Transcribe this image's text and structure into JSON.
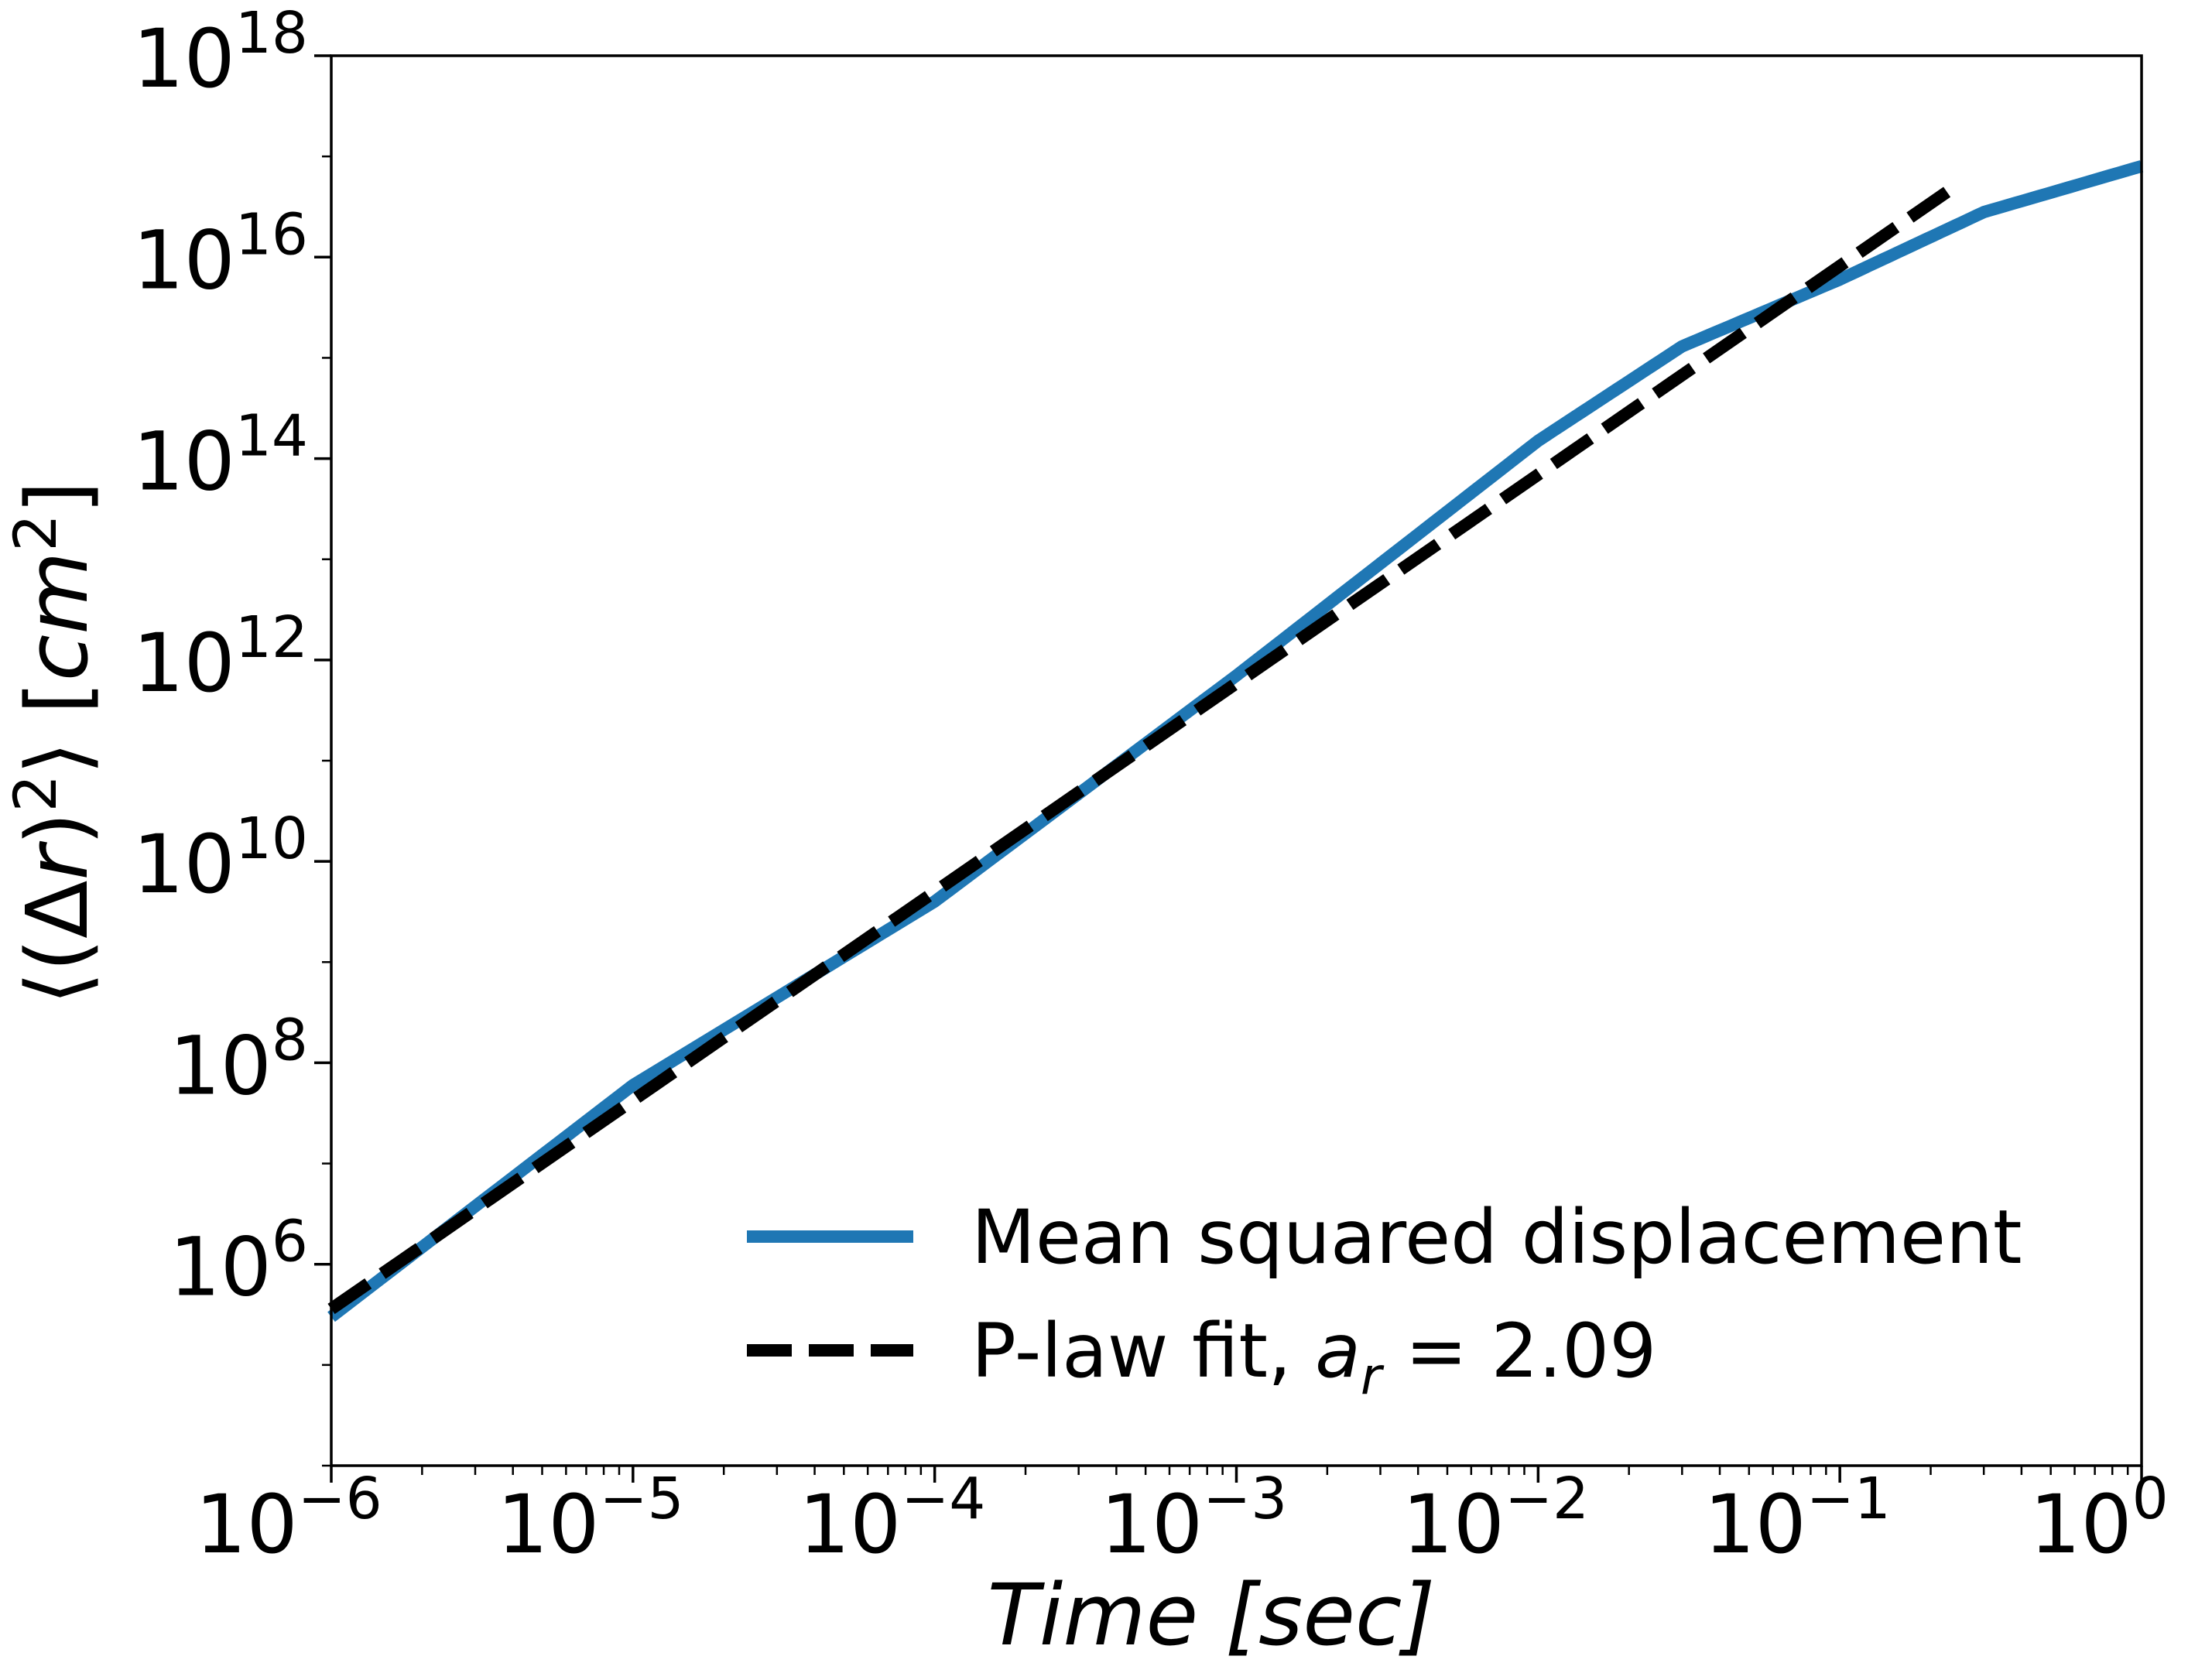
{
  "chart_data": {
    "type": "line",
    "xscale": "log",
    "yscale": "log",
    "xlabel": "Time [sec]",
    "ylabel": "⟨(Δr)²⟩ [cm²]",
    "xlim": [
      1e-06,
      1
    ],
    "ylim": [
      10000.0,
      1e+18
    ],
    "grid": false,
    "legend_position": "lower-right",
    "x_ticks": [
      {
        "value": 1e-06,
        "base": "10",
        "exp": "−6"
      },
      {
        "value": 1e-05,
        "base": "10",
        "exp": "−5"
      },
      {
        "value": 0.0001,
        "base": "10",
        "exp": "−4"
      },
      {
        "value": 0.001,
        "base": "10",
        "exp": "−3"
      },
      {
        "value": 0.01,
        "base": "10",
        "exp": "−2"
      },
      {
        "value": 0.1,
        "base": "10",
        "exp": "−1"
      },
      {
        "value": 1,
        "base": "10",
        "exp": "0"
      }
    ],
    "y_ticks": [
      {
        "value": 1000000.0,
        "base": "10",
        "exp": "6"
      },
      {
        "value": 100000000.0,
        "base": "10",
        "exp": "8"
      },
      {
        "value": 10000000000.0,
        "base": "10",
        "exp": "10"
      },
      {
        "value": 1000000000000.0,
        "base": "10",
        "exp": "12"
      },
      {
        "value": 100000000000000.0,
        "base": "10",
        "exp": "14"
      },
      {
        "value": 1e+16,
        "base": "10",
        "exp": "16"
      },
      {
        "value": 1e+18,
        "base": "10",
        "exp": "18"
      }
    ],
    "series": [
      {
        "name": "Mean squared displacement",
        "color": "#1f77b4",
        "style": "solid",
        "x": [
          1e-06,
          1e-05,
          0.0001,
          0.001,
          0.01,
          0.03,
          0.1,
          0.3,
          1
        ],
        "y": [
          300000.0,
          60000000.0,
          4000000000.0,
          700000000000.0,
          150000000000000.0,
          1300000000000000.0,
          6000000000000000.0,
          2.8e+16,
          8e+16
        ]
      },
      {
        "name": "P-law fit, a_r = 2.09",
        "color": "#000000",
        "style": "dashed",
        "x": [
          1e-06,
          0.24
        ],
        "y": [
          360000.0,
          5e+16
        ]
      }
    ]
  },
  "legend": {
    "entry1": "Mean squared displacement",
    "entry2_prefix": "P-law fit, ",
    "entry2_var": "a",
    "entry2_sub": "r",
    "entry2_suffix": " = 2.09"
  },
  "axis_titles": {
    "x": "Time [sec]",
    "y_pre": "⟨(Δ",
    "y_var": "r",
    "y_mid": ")",
    "y_exp": "2",
    "y_post": "⟩ [",
    "y_unit": "cm",
    "y_unit_exp": "2",
    "y_end": "]"
  }
}
